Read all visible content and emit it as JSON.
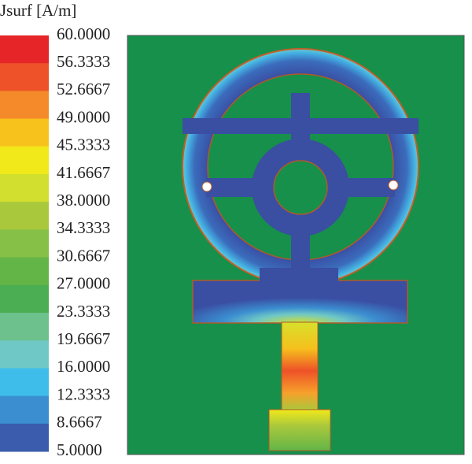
{
  "legend": {
    "title": "Jsurf [A/m]",
    "labels": [
      "60.0000",
      "56.3333",
      "52.6667",
      "49.0000",
      "45.3333",
      "41.6667",
      "38.0000",
      "34.3333",
      "30.6667",
      "27.0000",
      "23.3333",
      "19.6667",
      "16.0000",
      "12.3333",
      "8.6667",
      "5.0000"
    ],
    "colors": [
      "#e52528",
      "#ee5228",
      "#f58a2a",
      "#f8c21c",
      "#f1e91a",
      "#d2df2e",
      "#a9c83c",
      "#86c047",
      "#63b547",
      "#4cae52",
      "#6cc18c",
      "#6fc8c6",
      "#3fbdea",
      "#3b8ed0",
      "#3b5cac"
    ]
  }
}
